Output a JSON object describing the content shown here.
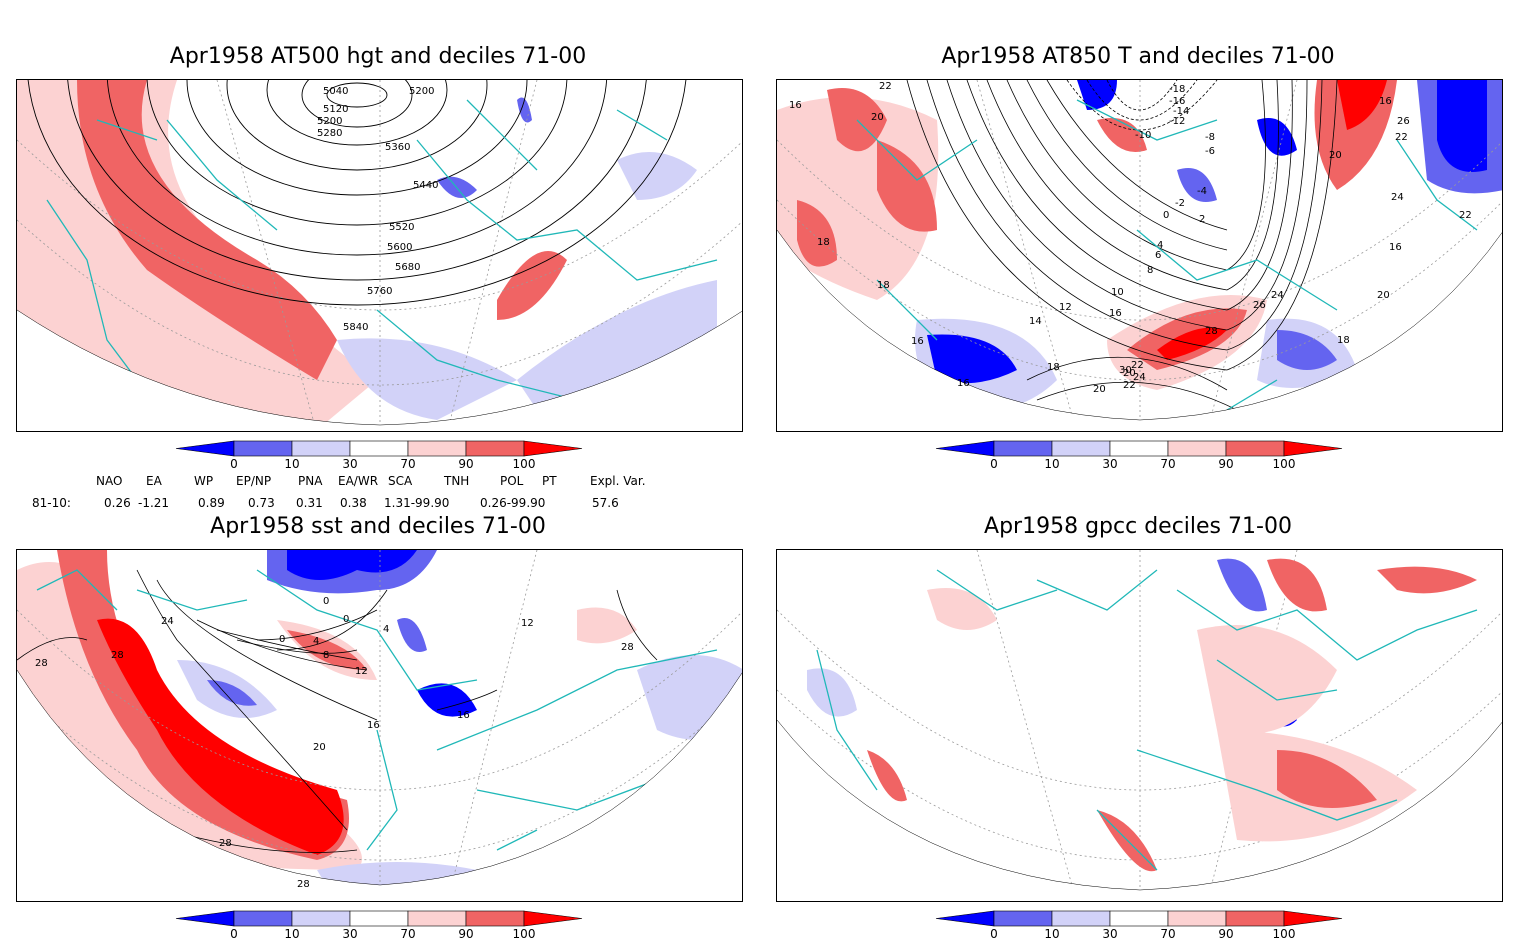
{
  "panels": [
    {
      "title": "Apr1958 AT500 hgt and deciles 71-00",
      "contour_labels": [
        "5040",
        "5120",
        "5200",
        "5280",
        "5200",
        "5360",
        "5440",
        "5520",
        "5600",
        "5680",
        "5760",
        "5840"
      ]
    },
    {
      "title": "Apr1958 AT850 T and deciles 71-00",
      "contour_labels": [
        "22",
        "16",
        "20",
        "18",
        "18",
        "16",
        "16",
        "-18",
        "-16",
        "-14",
        "-12",
        "-10",
        "-8",
        "-6",
        "-4",
        "-2",
        "0",
        "2",
        "4",
        "6",
        "8",
        "10",
        "12",
        "14",
        "16",
        "20",
        "22",
        "24",
        "26",
        "28",
        "30",
        "24",
        "22",
        "20",
        "18",
        "16",
        "26",
        "22",
        "20",
        "24",
        "22",
        "16",
        "18",
        "20"
      ]
    },
    {
      "title": "Apr1958 sst and deciles 71-00",
      "contour_labels": [
        "28",
        "28",
        "24",
        "0",
        "0",
        "0",
        "4",
        "4",
        "8",
        "12",
        "16",
        "16",
        "20",
        "28",
        "28",
        "12",
        "28"
      ]
    },
    {
      "title": "Apr1958 gpcc deciles 71-00",
      "contour_labels": []
    }
  ],
  "colorbar": {
    "ticks": [
      "0",
      "10",
      "30",
      "70",
      "90",
      "100"
    ],
    "colors": {
      "below0": "#0000ff",
      "c0_10": "#6464f0",
      "c10_30": "#d2d2f8",
      "c30_70": "#ffffff",
      "c70_90": "#fcd2d2",
      "c90_100": "#f06464",
      "above100": "#ff0000"
    }
  },
  "indices": {
    "headers": [
      "NAO",
      "EA",
      "WP",
      "EP/NP",
      "PNA",
      "EA/WR",
      "SCA",
      "TNH",
      "POL",
      "PT",
      "Expl. Var."
    ],
    "row_label": "81-10:",
    "values": [
      "0.26",
      "-1.21",
      "0.89",
      "0.73",
      "0.31",
      "0.38",
      "1.31-99.90",
      "",
      "0.26-99.90",
      "",
      "57.6"
    ]
  },
  "colors": {
    "coast": "#20b8b8",
    "contour": "#000000",
    "grid": "#9a9a9a"
  }
}
